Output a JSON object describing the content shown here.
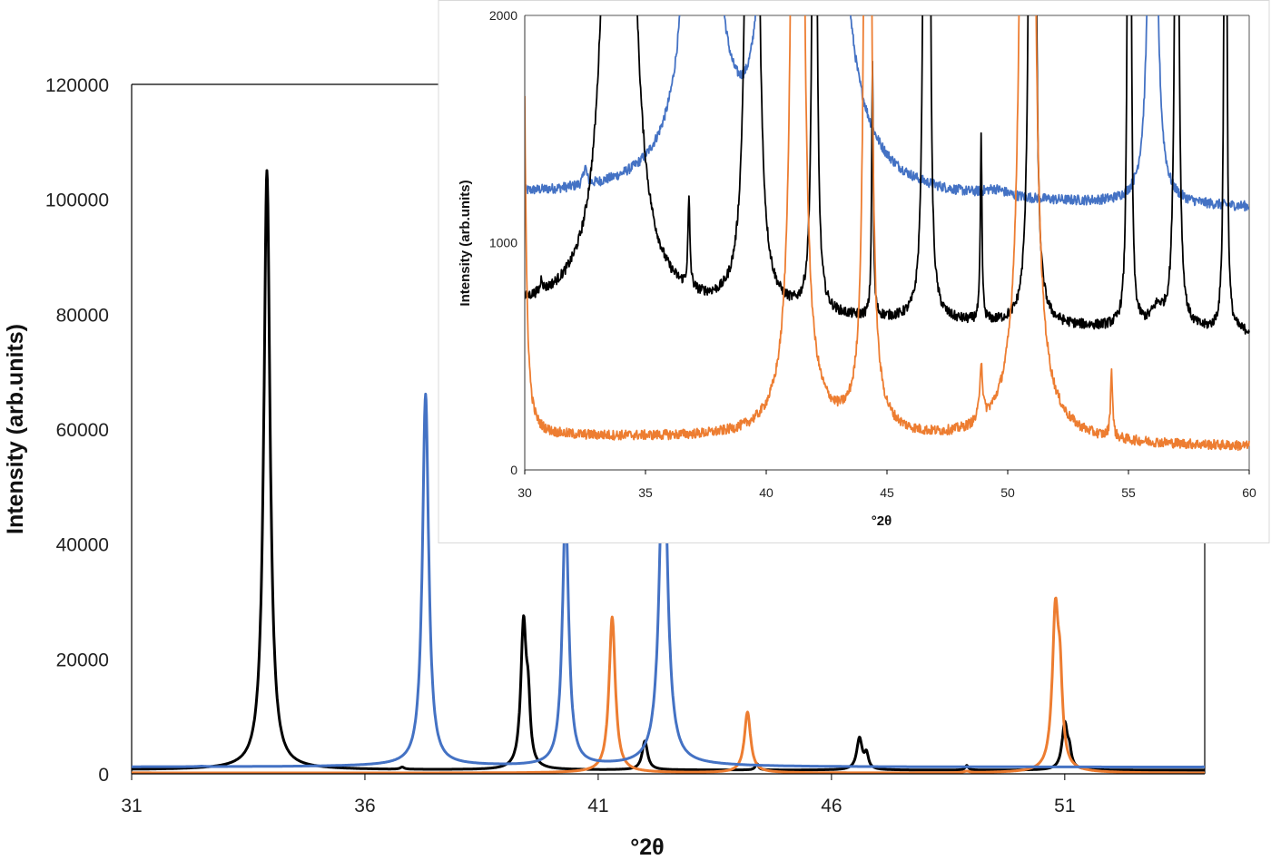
{
  "chart_data": [
    {
      "id": "main",
      "type": "line",
      "title": "",
      "xlabel": "°2θ",
      "ylabel": "Intensity (arb.units)",
      "xlim": [
        31,
        54
      ],
      "ylim": [
        0,
        120000
      ],
      "xticks": [
        "31",
        "36",
        "41",
        "46",
        "51"
      ],
      "yticks": [
        "0",
        "20000",
        "40000",
        "60000",
        "80000",
        "100000",
        "120000"
      ],
      "grid": false,
      "legend": "none"
    },
    {
      "id": "inset",
      "type": "line",
      "title": "",
      "xlabel": "°2θ",
      "ylabel": "Intensity (arb.units)",
      "xlim": [
        30,
        60
      ],
      "ylim": [
        0,
        2000
      ],
      "xticks": [
        "30",
        "35",
        "40",
        "45",
        "50",
        "55",
        "60"
      ],
      "yticks": [
        "0",
        "1000",
        "2000"
      ],
      "grid": false,
      "legend": "none"
    }
  ],
  "series": [
    {
      "color": "#000000",
      "baseline": [
        700,
        600
      ],
      "peaks_pos_height_hwhm": [
        [
          33.9,
          104000,
          0.08
        ],
        [
          33.9,
          300,
          1.0
        ],
        [
          36.8,
          380,
          0.05
        ],
        [
          30.7,
          60,
          0.05
        ],
        [
          39.4,
          25000,
          0.07
        ],
        [
          39.5,
          9000,
          0.05
        ],
        [
          42.0,
          5000,
          0.07
        ],
        [
          44.4,
          1100,
          0.04
        ],
        [
          46.6,
          5500,
          0.07
        ],
        [
          46.75,
          2500,
          0.05
        ],
        [
          48.9,
          800,
          0.04
        ],
        [
          51.0,
          8000,
          0.07
        ],
        [
          51.1,
          2500,
          0.05
        ],
        [
          55.0,
          2600,
          0.06
        ],
        [
          55.1,
          1200,
          0.05
        ],
        [
          56.2,
          80,
          0.3
        ],
        [
          57.0,
          3500,
          0.08
        ],
        [
          59.0,
          2800,
          0.05
        ],
        [
          59.05,
          1200,
          0.04
        ]
      ]
    },
    {
      "color": "#ED7D31",
      "baseline": [
        150,
        100
      ],
      "peaks_pos_height_hwhm": [
        [
          29.9,
          3000,
          0.1
        ],
        [
          41.3,
          27000,
          0.08
        ],
        [
          41.3,
          150,
          1.0
        ],
        [
          44.2,
          10500,
          0.08
        ],
        [
          44.3,
          80,
          0.8
        ],
        [
          48.9,
          250,
          0.07
        ],
        [
          50.8,
          27000,
          0.08
        ],
        [
          50.9,
          12000,
          0.06
        ],
        [
          50.8,
          200,
          1.0
        ],
        [
          54.3,
          300,
          0.05
        ]
      ]
    },
    {
      "color": "#4472C4",
      "baseline": [
        1200,
        1150
      ],
      "peaks_pos_height_hwhm": [
        [
          32.5,
          80,
          0.08
        ],
        [
          37.3,
          64500,
          0.08
        ],
        [
          37.4,
          330,
          1.4
        ],
        [
          40.3,
          45000,
          0.08
        ],
        [
          42.4,
          60000,
          0.1
        ],
        [
          42.6,
          380,
          1.4
        ],
        [
          49.5,
          30,
          0.6
        ],
        [
          56.0,
          3000,
          0.15
        ]
      ]
    }
  ]
}
